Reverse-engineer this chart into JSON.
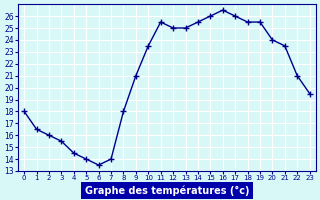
{
  "hours": [
    0,
    1,
    2,
    3,
    4,
    5,
    6,
    7,
    8,
    9,
    10,
    11,
    12,
    13,
    14,
    15,
    16,
    17,
    18,
    19,
    20,
    21,
    22,
    23
  ],
  "temperatures": [
    18,
    16.5,
    16,
    15.5,
    14.5,
    14,
    13.5,
    14,
    18,
    21,
    23.5,
    25.5,
    25,
    25,
    25.5,
    26,
    26.5,
    26,
    25.5,
    25.5,
    24,
    23.5,
    21,
    19.5
  ],
  "xlabel": "Graphe des températures (°c)",
  "ylim": [
    13,
    27
  ],
  "xlim": [
    0,
    23
  ],
  "yticks": [
    13,
    14,
    15,
    16,
    17,
    18,
    19,
    20,
    21,
    22,
    23,
    24,
    25,
    26
  ],
  "xtick_labels": [
    "0",
    "1",
    "2",
    "3",
    "4",
    "5",
    "6",
    "7",
    "8",
    "9",
    "10",
    "11",
    "12",
    "13",
    "14",
    "15",
    "16",
    "17",
    "18",
    "19",
    "20",
    "21",
    "22",
    "23"
  ],
  "line_color": "#00008B",
  "marker": "+",
  "bg_color": "#d8f8f8",
  "grid_color": "#ffffff",
  "xlabel_bg": "#0000aa",
  "xlabel_fg": "#ffffff"
}
